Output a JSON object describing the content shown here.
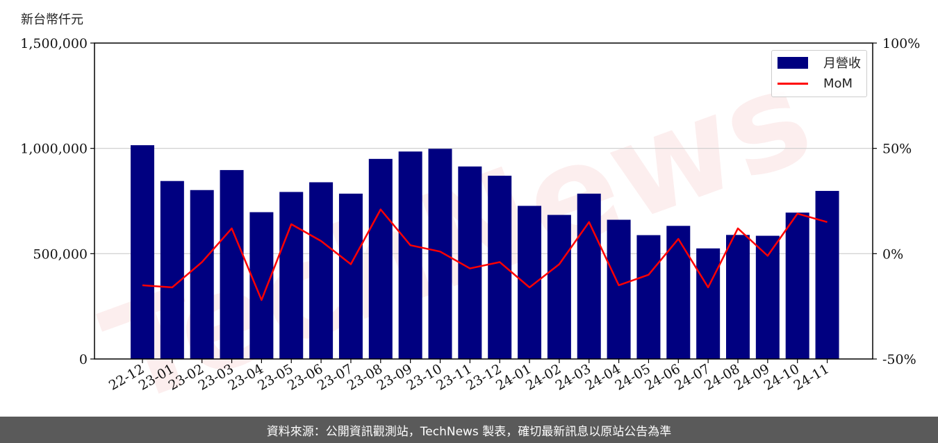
{
  "unit_label": "新台幣仟元",
  "footer_text": "資料來源：公開資訊觀測站，TechNews 製表，確切最新訊息以原站公告為準",
  "watermark_text": "TechNews",
  "legend": {
    "bar_label": "月營收",
    "line_label": "MoM"
  },
  "colors": {
    "bar": "#000080",
    "line": "#ff0000",
    "grid": "#cccccc"
  },
  "chart_data": {
    "type": "bar",
    "categories": [
      "22-12",
      "23-01",
      "23-02",
      "23-03",
      "23-04",
      "23-05",
      "23-06",
      "23-07",
      "23-08",
      "23-09",
      "23-10",
      "23-11",
      "23-12",
      "24-01",
      "24-02",
      "24-03",
      "24-04",
      "24-05",
      "24-06",
      "24-07",
      "24-08",
      "24-09",
      "24-10",
      "24-11"
    ],
    "series": [
      {
        "name": "月營收",
        "type": "bar",
        "axis": "left",
        "values": [
          1015000,
          845000,
          802000,
          897000,
          697000,
          793000,
          839000,
          785000,
          950000,
          985000,
          998000,
          914000,
          870000,
          727000,
          684000,
          785000,
          661000,
          588000,
          632000,
          525000,
          589000,
          585000,
          695000,
          798000
        ]
      },
      {
        "name": "MoM",
        "type": "line",
        "axis": "right",
        "values": [
          -15,
          -16,
          -4,
          12,
          -22,
          14,
          6,
          -5,
          21,
          4,
          1,
          -7,
          -4,
          -16,
          -5,
          15,
          -15,
          -10,
          7,
          -16,
          12,
          -1,
          19,
          15
        ]
      }
    ],
    "y_left": {
      "lim": [
        0,
        1500000
      ],
      "ticks": [
        0,
        500000,
        1000000,
        1500000
      ],
      "tick_labels": [
        "0",
        "500,000",
        "1,000,000",
        "1,500,000"
      ]
    },
    "y_right": {
      "lim": [
        -50,
        100
      ],
      "ticks": [
        -50,
        0,
        50,
        100
      ],
      "tick_labels": [
        "-50%",
        "0%",
        "50%",
        "100%"
      ]
    },
    "grid": "horizontal",
    "legend_position": "top-right"
  }
}
